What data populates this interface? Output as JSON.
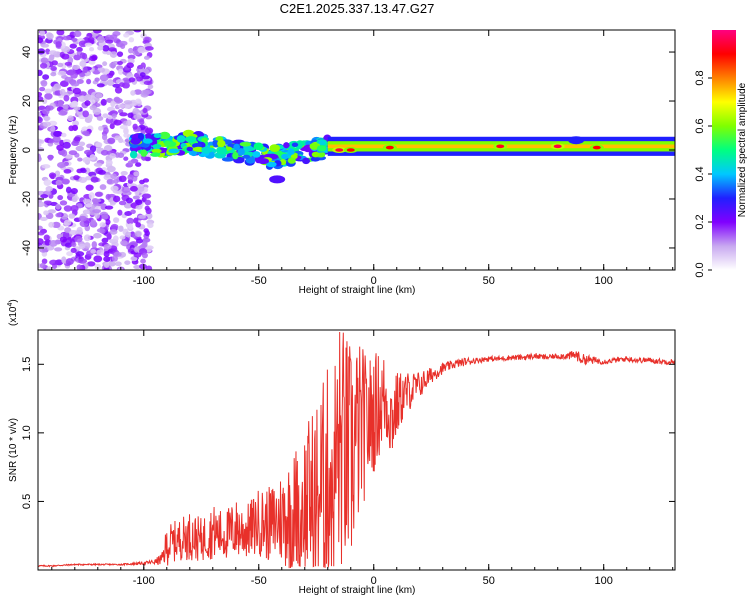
{
  "figure": {
    "title": "C2E1.2025.337.13.47.G27"
  },
  "colors": {
    "snr_line": "#e8302a",
    "axis": "#000000",
    "colormap": [
      "#ffffff",
      "#c8a8f0",
      "#8000ff",
      "#2020ff",
      "#00c8ff",
      "#00ff80",
      "#80ff00",
      "#ffff00",
      "#ff8000",
      "#ff0000",
      "#ff0080"
    ]
  },
  "chart_data": [
    {
      "type": "heatmap",
      "title": "C2E1.2025.337.13.47.G27",
      "xlabel": "Height of straight line (km)",
      "ylabel": "Frequency (Hz)",
      "xlim": [
        -146,
        131
      ],
      "ylim": [
        -49,
        49
      ],
      "xticks": [
        -100,
        -50,
        0,
        50,
        100
      ],
      "xtick_labels": [
        "-100",
        "-50",
        "0",
        "50",
        "100"
      ],
      "yticks": [
        40,
        20,
        0,
        -20,
        -40
      ],
      "ytick_labels": [
        "40",
        "20",
        "0",
        "-20",
        "-40"
      ],
      "colorbar": {
        "label": "Normalized spectral amplitude",
        "range": [
          0,
          1
        ],
        "ticks": [
          0.0,
          0.2,
          0.4,
          0.6,
          0.8
        ],
        "tick_labels": [
          "0.0",
          "0.2",
          "0.4",
          "0.6",
          "0.8"
        ]
      },
      "features": [
        {
          "region": "noise",
          "x_range": [
            -146,
            -97
          ],
          "freq_range": [
            -49,
            49
          ],
          "amplitude": 0.12
        },
        {
          "region": "band",
          "x_range": [
            -105,
            -20
          ],
          "center_freq": [
            2,
            2,
            3,
            1,
            -1,
            -3,
            -1,
            1
          ],
          "width_hz": 8,
          "amplitude": 0.35
        },
        {
          "region": "blob",
          "x": -42,
          "freq": -12,
          "amplitude": 0.25
        },
        {
          "region": "line",
          "x_range": [
            -20,
            131
          ],
          "center_freq": 1.5,
          "width_hz": 3,
          "amplitude": 0.6
        },
        {
          "region": "peak",
          "x": -15,
          "freq": 0,
          "amplitude": 0.95
        },
        {
          "region": "peak",
          "x": -10,
          "freq": 0,
          "amplitude": 0.9
        },
        {
          "region": "peak",
          "x": 7,
          "freq": 1,
          "amplitude": 0.9
        },
        {
          "region": "peak",
          "x": 55,
          "freq": 1.5,
          "amplitude": 0.92
        },
        {
          "region": "peak",
          "x": 80,
          "freq": 1.5,
          "amplitude": 0.95
        },
        {
          "region": "peak",
          "x": 97,
          "freq": 1,
          "amplitude": 0.9
        },
        {
          "region": "blob",
          "x": 88,
          "freq": 4,
          "amplitude": 0.3
        }
      ]
    },
    {
      "type": "line",
      "xlabel": "Height of straight line (km)",
      "ylabel": "SNR (10 * v/v)",
      "y_scale_label": "(x10",
      "y_scale_exponent": "4",
      "y_scale_suffix": ")",
      "xlim": [
        -146,
        131
      ],
      "ylim": [
        0,
        1.75
      ],
      "xticks": [
        -100,
        -50,
        0,
        50,
        100
      ],
      "xtick_labels": [
        "-100",
        "-50",
        "0",
        "50",
        "100"
      ],
      "yticks": [
        0.5,
        1.0,
        1.5
      ],
      "ytick_labels": [
        "0.5",
        "1.0",
        "1.5"
      ],
      "series": [
        {
          "name": "SNR",
          "x": [
            -146,
            -140,
            -130,
            -120,
            -110,
            -100,
            -95,
            -92,
            -90,
            -85,
            -80,
            -75,
            -70,
            -65,
            -60,
            -55,
            -50,
            -45,
            -40,
            -35,
            -30,
            -25,
            -20,
            -17,
            -15,
            -12,
            -10,
            -8,
            -5,
            -3,
            0,
            2,
            5,
            8,
            10,
            12,
            15,
            20,
            25,
            30,
            35,
            40,
            45,
            50,
            55,
            60,
            65,
            70,
            75,
            80,
            85,
            88,
            90,
            95,
            100,
            105,
            110,
            115,
            120,
            125,
            131
          ],
          "values": [
            0.03,
            0.03,
            0.04,
            0.04,
            0.04,
            0.05,
            0.06,
            0.08,
            0.18,
            0.22,
            0.25,
            0.22,
            0.28,
            0.25,
            0.3,
            0.28,
            0.35,
            0.33,
            0.38,
            0.42,
            0.5,
            0.55,
            0.65,
            0.75,
            0.9,
            0.85,
            0.8,
            0.95,
            1.05,
            1.05,
            1.15,
            1.2,
            1.25,
            1.1,
            1.2,
            1.25,
            1.3,
            1.35,
            1.42,
            1.47,
            1.5,
            1.52,
            1.53,
            1.54,
            1.54,
            1.55,
            1.55,
            1.56,
            1.55,
            1.56,
            1.56,
            1.57,
            1.54,
            1.53,
            1.52,
            1.53,
            1.54,
            1.53,
            1.53,
            1.52,
            1.52
          ],
          "noise_amplitude": [
            0.005,
            0.005,
            0.005,
            0.005,
            0.005,
            0.01,
            0.02,
            0.05,
            0.15,
            0.15,
            0.18,
            0.16,
            0.2,
            0.18,
            0.22,
            0.2,
            0.25,
            0.28,
            0.35,
            0.45,
            0.55,
            0.7,
            0.85,
            0.9,
            0.95,
            0.9,
            0.85,
            0.75,
            0.6,
            0.5,
            0.45,
            0.4,
            0.35,
            0.3,
            0.25,
            0.2,
            0.15,
            0.1,
            0.06,
            0.04,
            0.03,
            0.03,
            0.02,
            0.02,
            0.02,
            0.02,
            0.02,
            0.02,
            0.02,
            0.02,
            0.03,
            0.04,
            0.04,
            0.03,
            0.02,
            0.02,
            0.02,
            0.02,
            0.02,
            0.02,
            0.02
          ]
        }
      ]
    }
  ]
}
